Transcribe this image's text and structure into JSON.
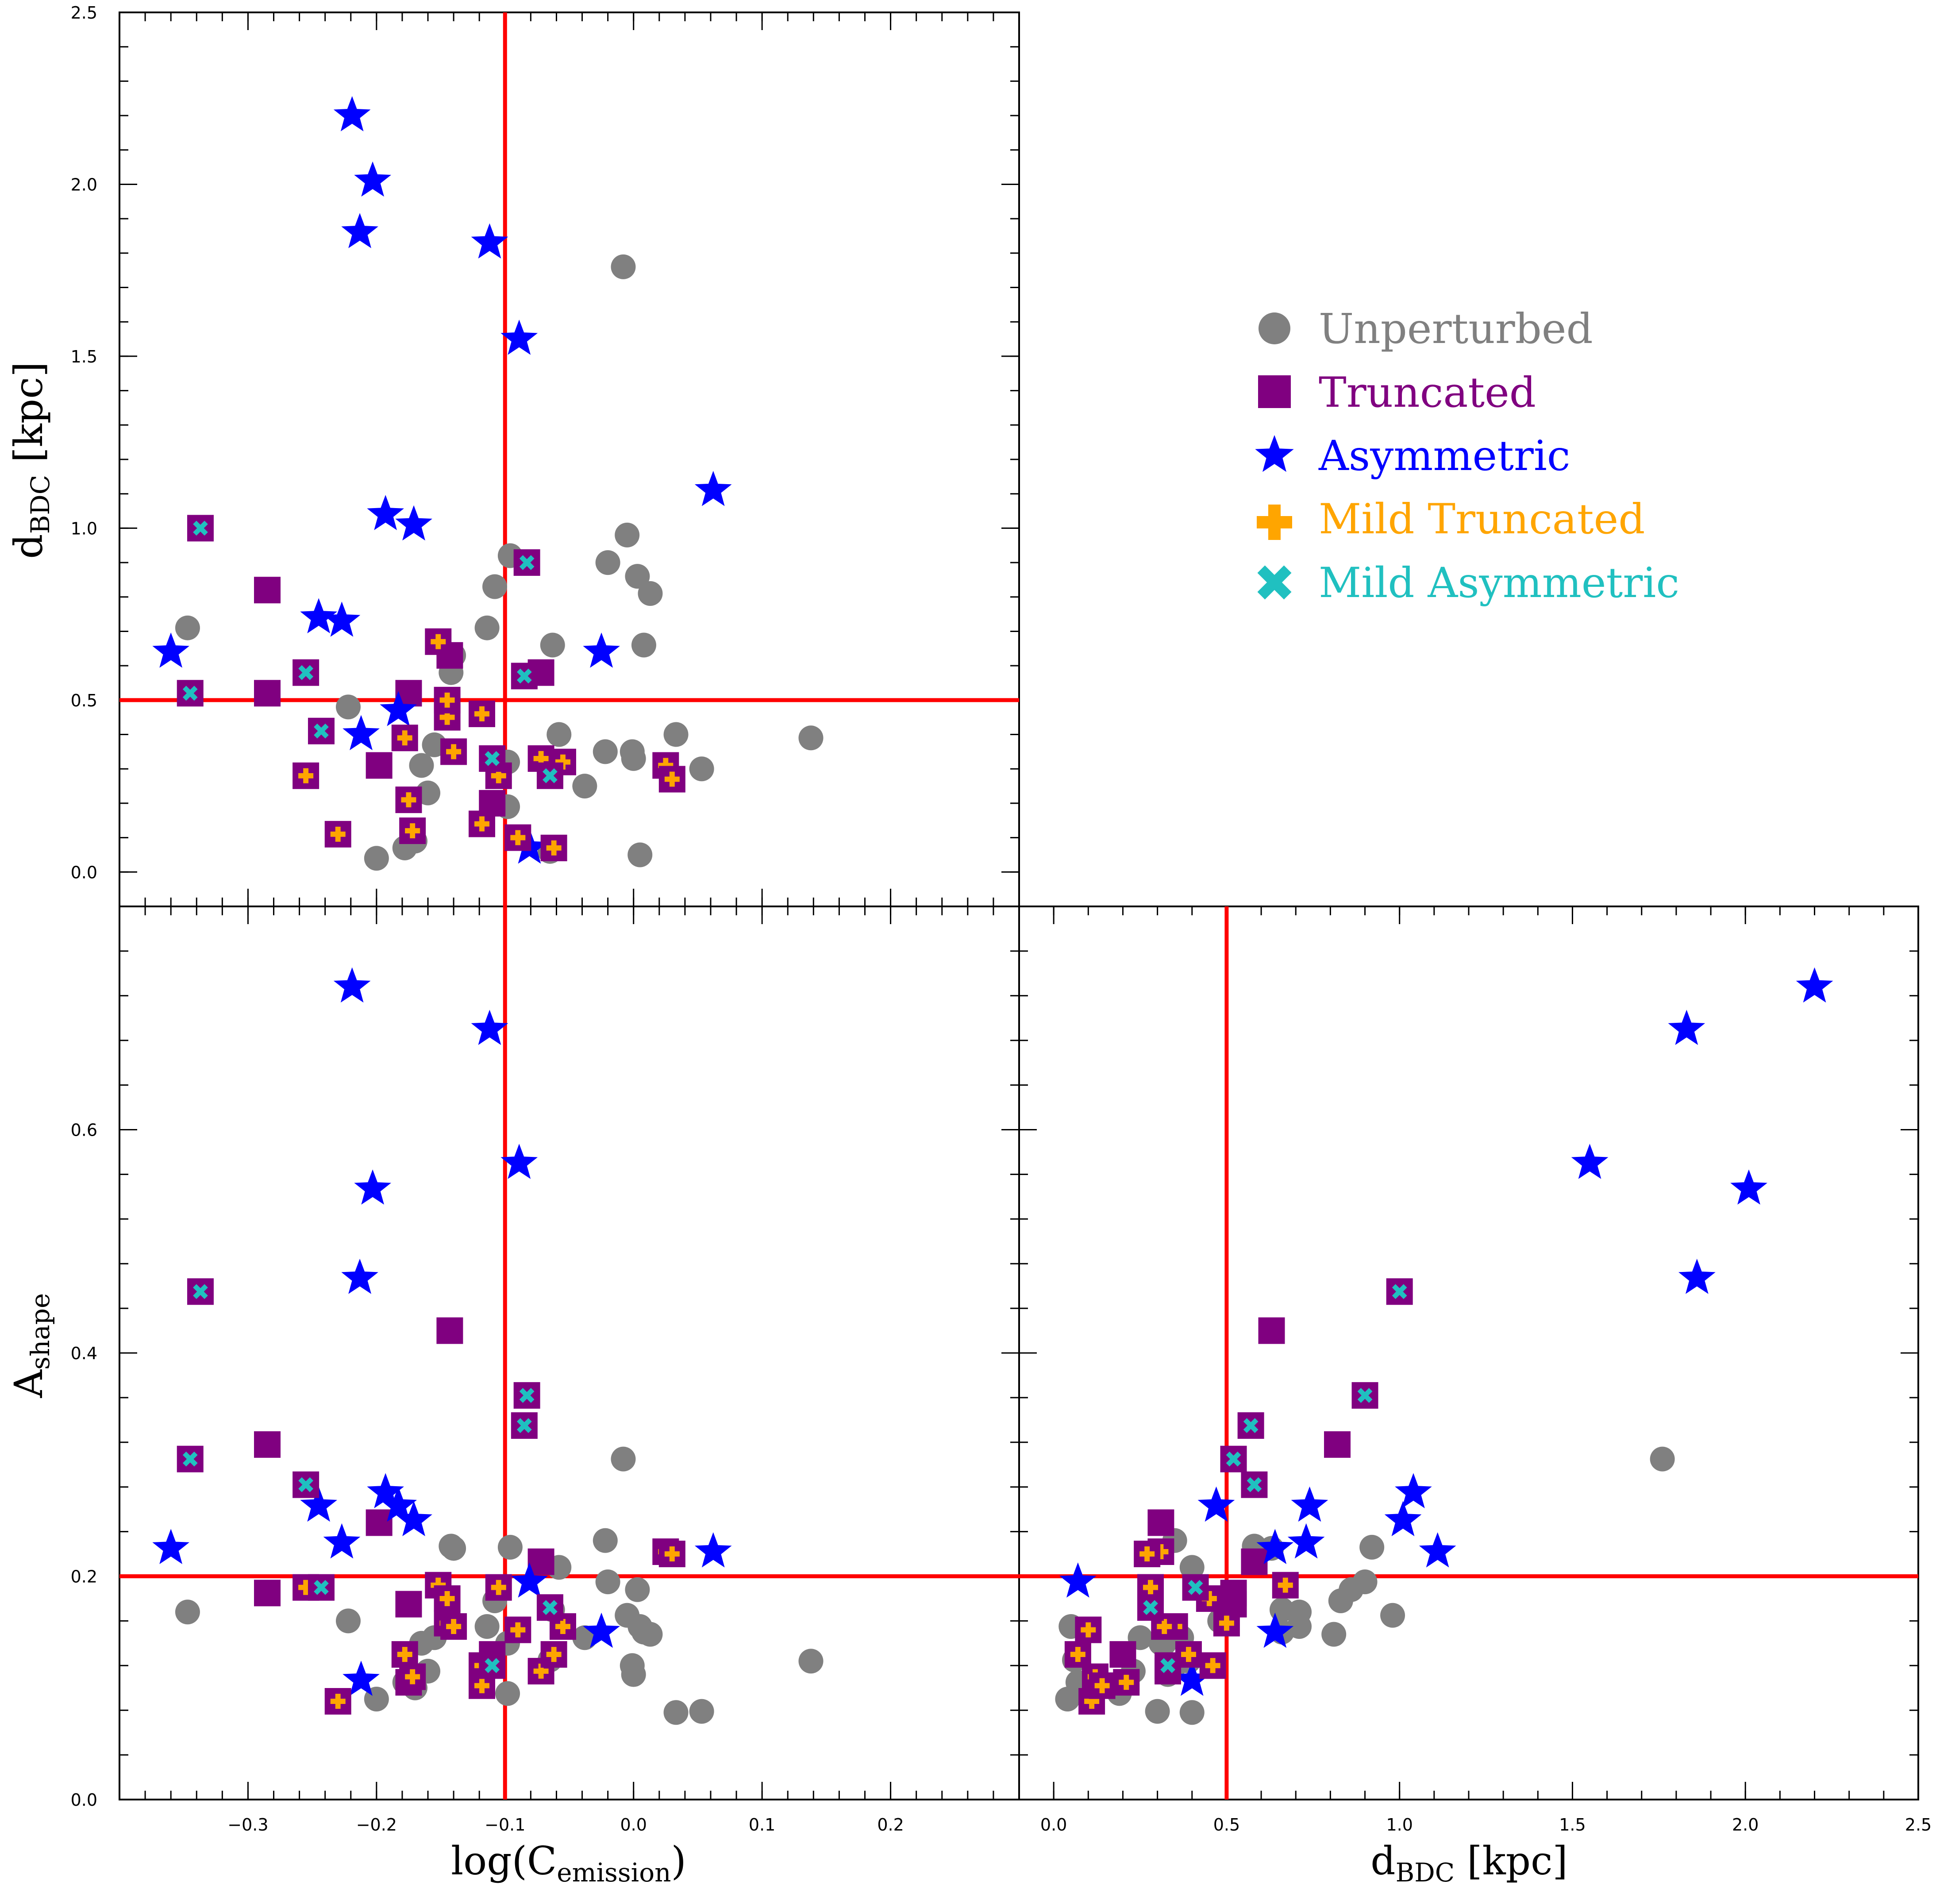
{
  "colors": {
    "unperturbed": "#808080",
    "truncated": "#800080",
    "asymmetric": "#0000ff",
    "mild_truncated": "#ffa500",
    "mild_asymmetric": "#20c0c0",
    "cut_line": "#ff0000"
  },
  "legend": {
    "items": [
      {
        "key": "unperturbed",
        "label": "Unperturbed",
        "marker": "circle"
      },
      {
        "key": "truncated",
        "label": "Truncated",
        "marker": "square"
      },
      {
        "key": "asymmetric",
        "label": "Asymmetric",
        "marker": "star"
      },
      {
        "key": "mild_truncated",
        "label": "Mild Truncated",
        "marker": "plus"
      },
      {
        "key": "mild_asymmetric",
        "label": "Mild Asymmetric",
        "marker": "cross"
      }
    ]
  },
  "axes": {
    "logc": {
      "label": "log(C",
      "sub": "emission",
      "suffix": ")",
      "range": [
        -0.4,
        0.3
      ],
      "ticks": [
        "-0.3",
        "-0.2",
        "-0.1",
        "0.0",
        "0.1",
        "0.2"
      ]
    },
    "dbdc": {
      "label": "d",
      "sub": "BDC",
      "suffix": " [kpc]",
      "range": [
        -0.1,
        2.5
      ],
      "ticks": [
        "0.0",
        "0.5",
        "1.0",
        "1.5",
        "2.0",
        "2.5"
      ]
    },
    "ashape": {
      "label": "A",
      "sub": "shape",
      "suffix": "",
      "range": [
        0.0,
        0.8
      ],
      "ticks": [
        "0.0",
        "0.2",
        "0.4",
        "0.6"
      ]
    }
  },
  "chart_data": {
    "type": "scatter",
    "title": "",
    "panels": [
      {
        "name": "top-left",
        "x": "logc",
        "y": "dbdc",
        "xcut": -0.1,
        "ycut": 0.5
      },
      {
        "name": "bottom-left",
        "x": "logc",
        "y": "ashape",
        "xcut": -0.1,
        "ycut": 0.2
      },
      {
        "name": "bottom-right",
        "x": "dbdc",
        "y": "ashape",
        "xcut": 0.5,
        "ycut": 0.2
      }
    ],
    "series": [
      {
        "name": "Unperturbed",
        "marker": "circle",
        "color": "#808080",
        "overlay": null,
        "points": [
          {
            "logc": -0.347,
            "dbdc": 0.71,
            "ashape": 0.168
          },
          {
            "logc": -0.222,
            "dbdc": 0.48,
            "ashape": 0.16
          },
          {
            "logc": -0.2,
            "dbdc": 0.04,
            "ashape": 0.09
          },
          {
            "logc": -0.178,
            "dbdc": 0.07,
            "ashape": 0.105
          },
          {
            "logc": -0.17,
            "dbdc": 0.09,
            "ashape": 0.1
          },
          {
            "logc": -0.165,
            "dbdc": 0.31,
            "ashape": 0.14
          },
          {
            "logc": -0.16,
            "dbdc": 0.23,
            "ashape": 0.115
          },
          {
            "logc": -0.155,
            "dbdc": 0.37,
            "ashape": 0.145
          },
          {
            "logc": -0.142,
            "dbdc": 0.58,
            "ashape": 0.227
          },
          {
            "logc": -0.14,
            "dbdc": 0.63,
            "ashape": 0.225
          },
          {
            "logc": -0.114,
            "dbdc": 0.71,
            "ashape": 0.155
          },
          {
            "logc": -0.108,
            "dbdc": 0.83,
            "ashape": 0.178
          },
          {
            "logc": -0.096,
            "dbdc": 0.92,
            "ashape": 0.226
          },
          {
            "logc": -0.098,
            "dbdc": 0.19,
            "ashape": 0.095
          },
          {
            "logc": -0.098,
            "dbdc": 0.32,
            "ashape": 0.14
          },
          {
            "logc": -0.065,
            "dbdc": 0.06,
            "ashape": 0.125
          },
          {
            "logc": -0.063,
            "dbdc": 0.66,
            "ashape": 0.17
          },
          {
            "logc": -0.058,
            "dbdc": 0.4,
            "ashape": 0.208
          },
          {
            "logc": -0.038,
            "dbdc": 0.25,
            "ashape": 0.145
          },
          {
            "logc": -0.022,
            "dbdc": 0.35,
            "ashape": 0.232
          },
          {
            "logc": -0.02,
            "dbdc": 0.9,
            "ashape": 0.195
          },
          {
            "logc": -0.008,
            "dbdc": 1.76,
            "ashape": 0.305
          },
          {
            "logc": -0.005,
            "dbdc": 0.98,
            "ashape": 0.165
          },
          {
            "logc": -0.001,
            "dbdc": 0.35,
            "ashape": 0.12
          },
          {
            "logc": 0.0,
            "dbdc": 0.33,
            "ashape": 0.112
          },
          {
            "logc": 0.003,
            "dbdc": 0.86,
            "ashape": 0.188
          },
          {
            "logc": 0.005,
            "dbdc": 0.05,
            "ashape": 0.155
          },
          {
            "logc": 0.008,
            "dbdc": 0.66,
            "ashape": 0.15
          },
          {
            "logc": 0.013,
            "dbdc": 0.81,
            "ashape": 0.148
          },
          {
            "logc": 0.033,
            "dbdc": 0.4,
            "ashape": 0.078
          },
          {
            "logc": 0.053,
            "dbdc": 0.3,
            "ashape": 0.079
          },
          {
            "logc": 0.138,
            "dbdc": 0.39,
            "ashape": 0.124
          }
        ]
      },
      {
        "name": "Truncated",
        "marker": "square",
        "color": "#800080",
        "overlay": null,
        "points": [
          {
            "logc": -0.285,
            "dbdc": 0.82,
            "ashape": 0.318
          },
          {
            "logc": -0.285,
            "dbdc": 0.52,
            "ashape": 0.185
          },
          {
            "logc": -0.198,
            "dbdc": 0.31,
            "ashape": 0.248
          },
          {
            "logc": -0.143,
            "dbdc": 0.63,
            "ashape": 0.42
          },
          {
            "logc": -0.072,
            "dbdc": 0.58,
            "ashape": 0.213
          },
          {
            "logc": -0.175,
            "dbdc": 0.52,
            "ashape": 0.175
          },
          {
            "logc": -0.11,
            "dbdc": 0.2,
            "ashape": 0.13
          }
        ]
      },
      {
        "name": "Asymmetric",
        "marker": "star",
        "color": "#0000ff",
        "overlay": null,
        "points": [
          {
            "logc": -0.36,
            "dbdc": 0.64,
            "ashape": 0.225
          },
          {
            "logc": -0.245,
            "dbdc": 0.74,
            "ashape": 0.263
          },
          {
            "logc": -0.227,
            "dbdc": 0.73,
            "ashape": 0.23
          },
          {
            "logc": -0.219,
            "dbdc": 2.2,
            "ashape": 0.728
          },
          {
            "logc": -0.213,
            "dbdc": 1.86,
            "ashape": 0.467
          },
          {
            "logc": -0.212,
            "dbdc": 0.4,
            "ashape": 0.107
          },
          {
            "logc": -0.203,
            "dbdc": 2.01,
            "ashape": 0.547
          },
          {
            "logc": -0.193,
            "dbdc": 1.04,
            "ashape": 0.275
          },
          {
            "logc": -0.183,
            "dbdc": 0.47,
            "ashape": 0.263
          },
          {
            "logc": -0.171,
            "dbdc": 1.01,
            "ashape": 0.25
          },
          {
            "logc": -0.112,
            "dbdc": 1.83,
            "ashape": 0.69
          },
          {
            "logc": -0.089,
            "dbdc": 1.55,
            "ashape": 0.57
          },
          {
            "logc": -0.081,
            "dbdc": 0.07,
            "ashape": 0.195
          },
          {
            "logc": -0.025,
            "dbdc": 0.64,
            "ashape": 0.15
          },
          {
            "logc": 0.062,
            "dbdc": 1.11,
            "ashape": 0.222
          }
        ]
      },
      {
        "name": "Mild Truncated",
        "marker": "plus",
        "color": "#ffa500",
        "overlay": "truncated",
        "points": [
          {
            "logc": -0.255,
            "dbdc": 0.28,
            "ashape": 0.19
          },
          {
            "logc": -0.23,
            "dbdc": 0.11,
            "ashape": 0.088
          },
          {
            "logc": -0.178,
            "dbdc": 0.39,
            "ashape": 0.13
          },
          {
            "logc": -0.175,
            "dbdc": 0.21,
            "ashape": 0.105
          },
          {
            "logc": -0.172,
            "dbdc": 0.12,
            "ashape": 0.11
          },
          {
            "logc": -0.152,
            "dbdc": 0.67,
            "ashape": 0.192
          },
          {
            "logc": -0.145,
            "dbdc": 0.45,
            "ashape": 0.18
          },
          {
            "logc": -0.145,
            "dbdc": 0.5,
            "ashape": 0.158
          },
          {
            "logc": -0.14,
            "dbdc": 0.35,
            "ashape": 0.155
          },
          {
            "logc": -0.118,
            "dbdc": 0.14,
            "ashape": 0.102
          },
          {
            "logc": -0.118,
            "dbdc": 0.46,
            "ashape": 0.12
          },
          {
            "logc": -0.105,
            "dbdc": 0.28,
            "ashape": 0.19
          },
          {
            "logc": -0.09,
            "dbdc": 0.1,
            "ashape": 0.152
          },
          {
            "logc": -0.072,
            "dbdc": 0.33,
            "ashape": 0.115
          },
          {
            "logc": -0.062,
            "dbdc": 0.07,
            "ashape": 0.13
          },
          {
            "logc": -0.055,
            "dbdc": 0.32,
            "ashape": 0.155
          },
          {
            "logc": 0.025,
            "dbdc": 0.31,
            "ashape": 0.222
          },
          {
            "logc": 0.03,
            "dbdc": 0.27,
            "ashape": 0.22
          }
        ]
      },
      {
        "name": "Mild Asymmetric",
        "marker": "cross",
        "color": "#20c0c0",
        "overlay": "truncated",
        "points": [
          {
            "logc": -0.337,
            "dbdc": 1.0,
            "ashape": 0.455
          },
          {
            "logc": -0.345,
            "dbdc": 0.52,
            "ashape": 0.305
          },
          {
            "logc": -0.255,
            "dbdc": 0.58,
            "ashape": 0.282
          },
          {
            "logc": -0.243,
            "dbdc": 0.41,
            "ashape": 0.19
          },
          {
            "logc": -0.083,
            "dbdc": 0.9,
            "ashape": 0.362
          },
          {
            "logc": -0.085,
            "dbdc": 0.57,
            "ashape": 0.335
          },
          {
            "logc": -0.065,
            "dbdc": 0.28,
            "ashape": 0.172
          },
          {
            "logc": -0.11,
            "dbdc": 0.33,
            "ashape": 0.12
          }
        ]
      }
    ]
  }
}
